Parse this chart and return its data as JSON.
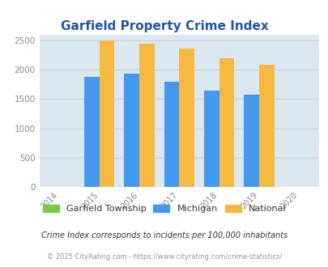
{
  "title": "Garfield Property Crime Index",
  "title_color": "#2255aa",
  "years": [
    2014,
    2015,
    2016,
    2017,
    2018,
    2019,
    2020
  ],
  "plot_years": [
    2015,
    2016,
    2017,
    2018,
    2019
  ],
  "garfield_values": [
    0,
    0,
    0,
    0,
    0
  ],
  "michigan_values": [
    1880,
    1930,
    1800,
    1640,
    1580
  ],
  "national_values": [
    2500,
    2450,
    2360,
    2200,
    2090
  ],
  "garfield_color": "#77cc44",
  "michigan_color": "#4499ee",
  "national_color": "#f5b942",
  "bg_color": "#dce8f0",
  "grid_color": "#c0d4e0",
  "ylim": [
    0,
    2600
  ],
  "yticks": [
    0,
    500,
    1000,
    1500,
    2000,
    2500
  ],
  "bar_width": 0.38,
  "legend_labels": [
    "Garfield Township",
    "Michigan",
    "National"
  ],
  "footnote1": "Crime Index corresponds to incidents per 100,000 inhabitants",
  "footnote2": "© 2025 CityRating.com - https://www.cityrating.com/crime-statistics/",
  "footnote1_color": "#333333",
  "footnote2_color": "#999999"
}
